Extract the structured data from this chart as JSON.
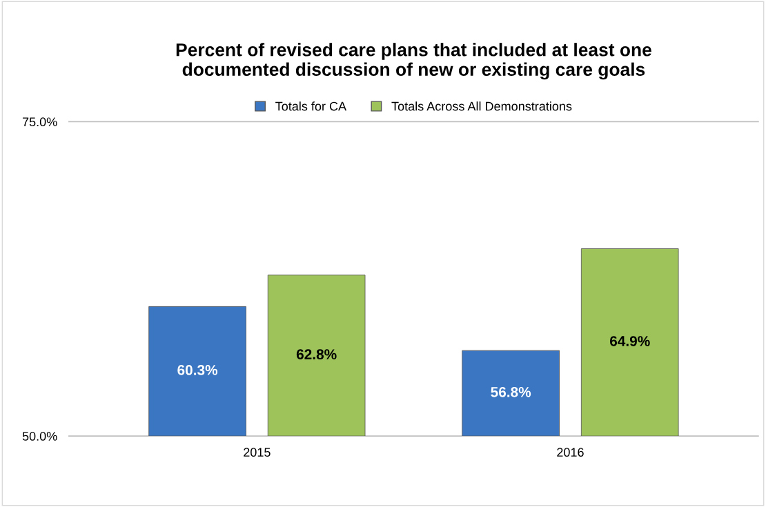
{
  "chart_data": {
    "type": "bar",
    "title": "Percent of revised care plans that included at least one\ndocumented discussion of new or existing care goals",
    "categories": [
      "2015",
      "2016"
    ],
    "series": [
      {
        "name": "Totals for CA",
        "color": "#3b76c2",
        "values": [
          60.3,
          56.8
        ],
        "value_labels": [
          "60.3%",
          "56.8%"
        ]
      },
      {
        "name": "Totals Across All Demonstrations",
        "color": "#9dc35a",
        "values": [
          62.8,
          64.9
        ],
        "value_labels": [
          "62.8%",
          "64.9%"
        ]
      }
    ],
    "ylim": [
      50,
      75
    ],
    "yticks": [
      {
        "value": 50,
        "label": "50.0%"
      },
      {
        "value": 75,
        "label": "75.0%"
      }
    ],
    "legend": "top"
  }
}
